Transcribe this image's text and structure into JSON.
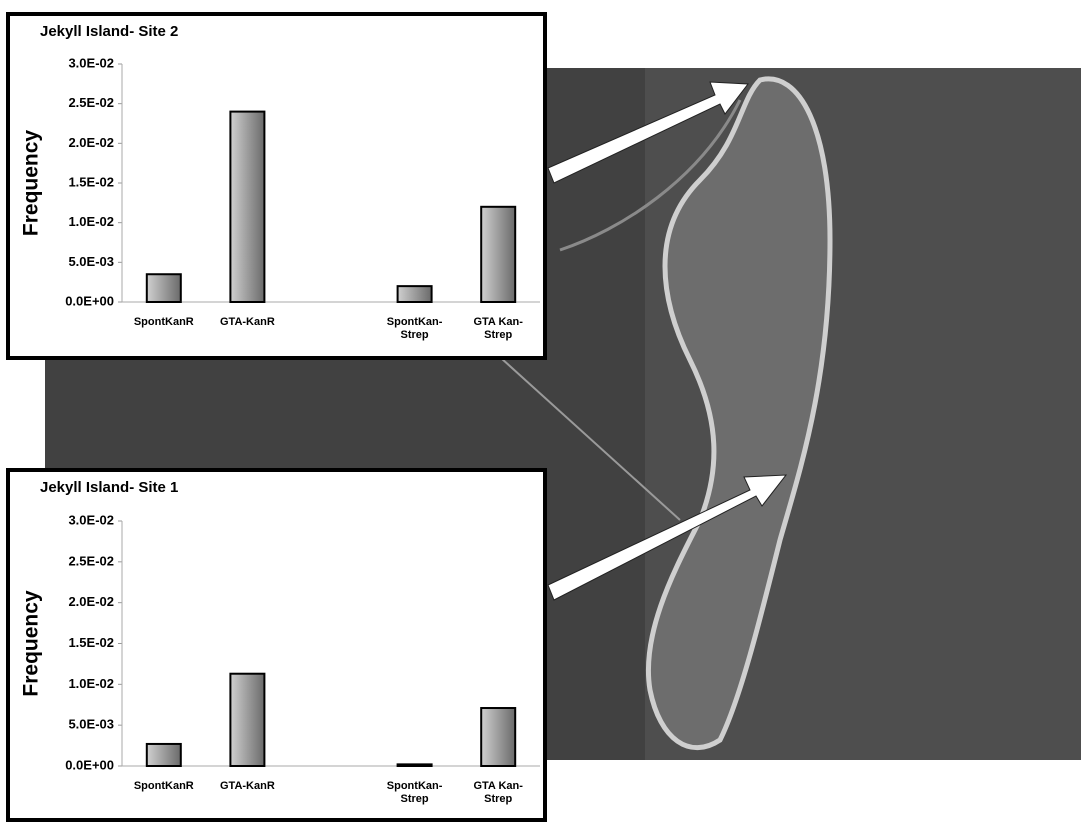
{
  "chart_data": [
    {
      "type": "bar",
      "title": "Jekyll Island- Site 2",
      "y_label": "Frequency",
      "categories": [
        "SpontKanR",
        "GTA-KanR",
        null,
        "SpontKan-\nStrep",
        "GTA Kan-\nStrep"
      ],
      "values": [
        0.0035,
        0.024,
        null,
        0.002,
        0.012
      ],
      "color": "#7a7a7a",
      "ylim": [
        0,
        0.03
      ],
      "yticks": [
        {
          "value": 0,
          "label": "0.0E+00"
        },
        {
          "value": 0.005,
          "label": "5.0E-03"
        },
        {
          "value": 0.01,
          "label": "1.0E-02"
        },
        {
          "value": 0.015,
          "label": "1.5E-02"
        },
        {
          "value": 0.02,
          "label": "2.0E-02"
        },
        {
          "value": 0.025,
          "label": "2.5E-02"
        },
        {
          "value": 0.03,
          "label": "3.0E-02"
        }
      ],
      "grid": false
    },
    {
      "type": "bar",
      "title": "Jekyll Island- Site 1",
      "y_label": "Frequency",
      "categories": [
        "SpontKanR",
        "GTA-KanR",
        null,
        "SpontKan-\nStrep",
        "GTA Kan-\nStrep"
      ],
      "values": [
        0.0027,
        0.0113,
        null,
        0.0002,
        0.0071
      ],
      "color": "#7a7a7a",
      "ylim": [
        0,
        0.03
      ],
      "yticks": [
        {
          "value": 0,
          "label": "0.0E+00"
        },
        {
          "value": 0.005,
          "label": "5.0E-03"
        },
        {
          "value": 0.01,
          "label": "1.0E-02"
        },
        {
          "value": 0.015,
          "label": "1.5E-02"
        },
        {
          "value": 0.02,
          "label": "2.0E-02"
        },
        {
          "value": 0.025,
          "label": "2.5E-02"
        },
        {
          "value": 0.03,
          "label": "3.0E-02"
        }
      ],
      "grid": false
    }
  ]
}
